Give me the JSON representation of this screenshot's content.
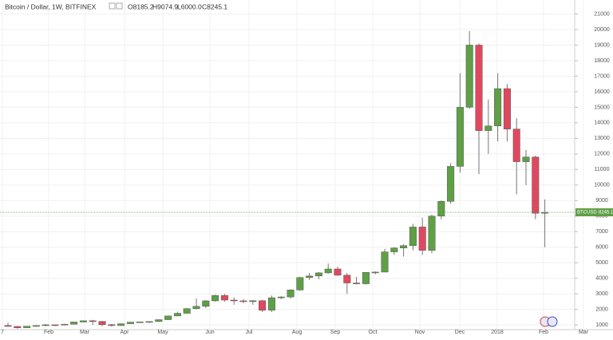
{
  "chart_data": {
    "type": "candlestick",
    "title": "Bitcoin / Dollar, 1W, BITFINEX",
    "ohlc_legend": [
      "O8185.2",
      "H9074.9",
      "L6000.0",
      "C8245.1"
    ],
    "symbol": "BTCUSD",
    "up_color": "#5f9f45",
    "down_color": "#e0485f",
    "grid": true,
    "ylim": [
      700,
      21900
    ],
    "yticks": [
      1000,
      2000,
      3000,
      4000,
      5000,
      6000,
      7000,
      8000,
      9000,
      10000,
      11000,
      12000,
      13000,
      14000,
      15000,
      16000,
      17000,
      18000,
      19000,
      20000,
      21000
    ],
    "x_labels": [
      "7",
      "Feb",
      "Mar",
      "Apr",
      "May",
      "Jun",
      "Jul",
      "Aug",
      "Sep",
      "Oct",
      "Nov",
      "Dec",
      "2018",
      "Feb",
      "Mar"
    ],
    "open": [
      963,
      905,
      820,
      920,
      960,
      1010,
      995,
      1050,
      1190,
      1270,
      1230,
      1020,
      960,
      1080,
      1180,
      1200,
      1220,
      1340,
      1580,
      1750,
      2050,
      2200,
      2550,
      2900,
      2600,
      2550,
      2500,
      2560,
      1950,
      2750,
      2800,
      3250,
      4050,
      4150,
      4350,
      4600,
      4200,
      3700,
      3650,
      4380,
      4400,
      5700,
      5950,
      6100,
      7300,
      5800,
      8000,
      8950,
      11200,
      15000,
      19000,
      13500,
      13800,
      16200,
      13600,
      11500,
      11800,
      8185.2
    ],
    "high": [
      1140,
      925,
      925,
      1000,
      1060,
      1030,
      1080,
      1200,
      1290,
      1330,
      1260,
      1060,
      1100,
      1200,
      1210,
      1230,
      1360,
      1600,
      1850,
      2100,
      2700,
      2600,
      2950,
      3000,
      2770,
      2650,
      2600,
      2620,
      2900,
      2850,
      3300,
      4100,
      4350,
      4400,
      4950,
      4750,
      4350,
      4100,
      4400,
      4450,
      5900,
      6000,
      6200,
      7500,
      7900,
      8100,
      9000,
      11400,
      17200,
      19900,
      19100,
      15500,
      17200,
      16500,
      14300,
      12250,
      11900,
      9074.9
    ],
    "low": [
      890,
      760,
      815,
      880,
      920,
      940,
      980,
      1040,
      1150,
      1000,
      920,
      890,
      950,
      1070,
      1150,
      1120,
      1220,
      1330,
      1560,
      1720,
      2000,
      2080,
      2500,
      2500,
      2300,
      2400,
      2300,
      1830,
      1830,
      2650,
      2700,
      3200,
      3900,
      3950,
      4300,
      4150,
      3000,
      3600,
      3600,
      4250,
      4400,
      5500,
      5400,
      5800,
      5500,
      5600,
      7800,
      8800,
      10800,
      14900,
      10700,
      12000,
      12800,
      12800,
      9400,
      10000,
      7800,
      6000
    ],
    "close": [
      905,
      820,
      920,
      960,
      1010,
      995,
      1050,
      1190,
      1270,
      1230,
      1020,
      960,
      1080,
      1180,
      1200,
      1220,
      1340,
      1580,
      1750,
      2050,
      2200,
      2550,
      2900,
      2600,
      2550,
      2500,
      2560,
      1950,
      2750,
      2800,
      3250,
      4050,
      4150,
      4350,
      4600,
      4200,
      3700,
      3650,
      4380,
      4400,
      5700,
      5950,
      6100,
      7300,
      5800,
      8000,
      8950,
      11200,
      15000,
      19000,
      13500,
      13800,
      16200,
      13600,
      11500,
      11800,
      8185,
      8245.1
    ]
  }
}
